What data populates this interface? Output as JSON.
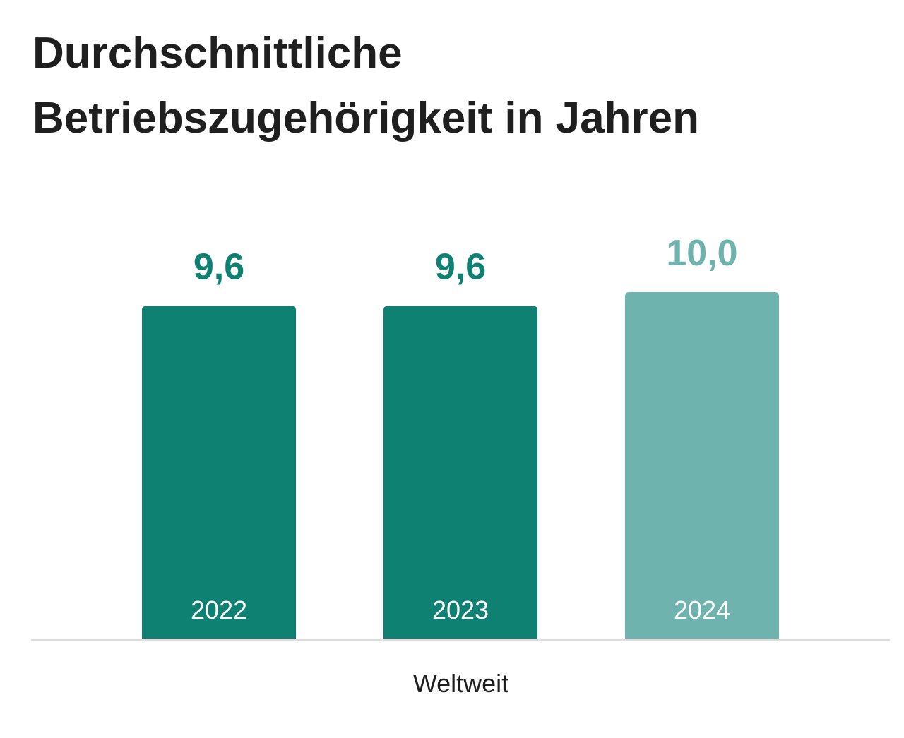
{
  "chart_data": {
    "type": "bar",
    "title_lines": [
      "Durchschnittliche",
      "Betriebszugehörigkeit in Jahren"
    ],
    "group_label": "Weltweit",
    "categories": [
      "2022",
      "2023",
      "2024"
    ],
    "values": [
      9.6,
      9.6,
      10.0
    ],
    "value_labels": [
      "9,6",
      "9,6",
      "10,0"
    ],
    "colors": [
      "#0e8172",
      "#0e8172",
      "#6eb3ad"
    ],
    "axis_color": "#dcdcdc",
    "grid": false,
    "legend": "none"
  }
}
